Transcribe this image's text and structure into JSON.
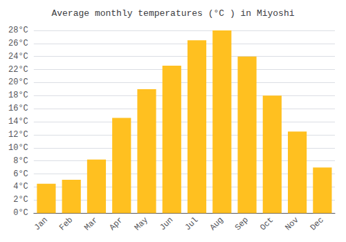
{
  "chart_data": {
    "type": "bar",
    "title": "Average monthly temperatures (°C ) in Miyoshi",
    "categories": [
      "Jan",
      "Feb",
      "Mar",
      "Apr",
      "May",
      "Jun",
      "Jul",
      "Aug",
      "Sep",
      "Oct",
      "Nov",
      "Dec"
    ],
    "values": [
      4.5,
      5.1,
      8.2,
      14.6,
      19.0,
      22.6,
      26.5,
      28.0,
      24.0,
      18.0,
      12.5,
      7.0
    ],
    "color": "#FFC020",
    "ylim": [
      0,
      28
    ],
    "yticks": [
      {
        "value": 0,
        "label": "0°C"
      },
      {
        "value": 2,
        "label": "2°C"
      },
      {
        "value": 4,
        "label": "4°C"
      },
      {
        "value": 6,
        "label": "6°C"
      },
      {
        "value": 8,
        "label": "8°C"
      },
      {
        "value": 10,
        "label": "10°C"
      },
      {
        "value": 12,
        "label": "12°C"
      },
      {
        "value": 14,
        "label": "14°C"
      },
      {
        "value": 16,
        "label": "16°C"
      },
      {
        "value": 18,
        "label": "18°C"
      },
      {
        "value": 20,
        "label": "20°C"
      },
      {
        "value": 22,
        "label": "22°C"
      },
      {
        "value": 24,
        "label": "24°C"
      },
      {
        "value": 26,
        "label": "26°C"
      },
      {
        "value": 28,
        "label": "28°C"
      }
    ],
    "grid": true
  }
}
